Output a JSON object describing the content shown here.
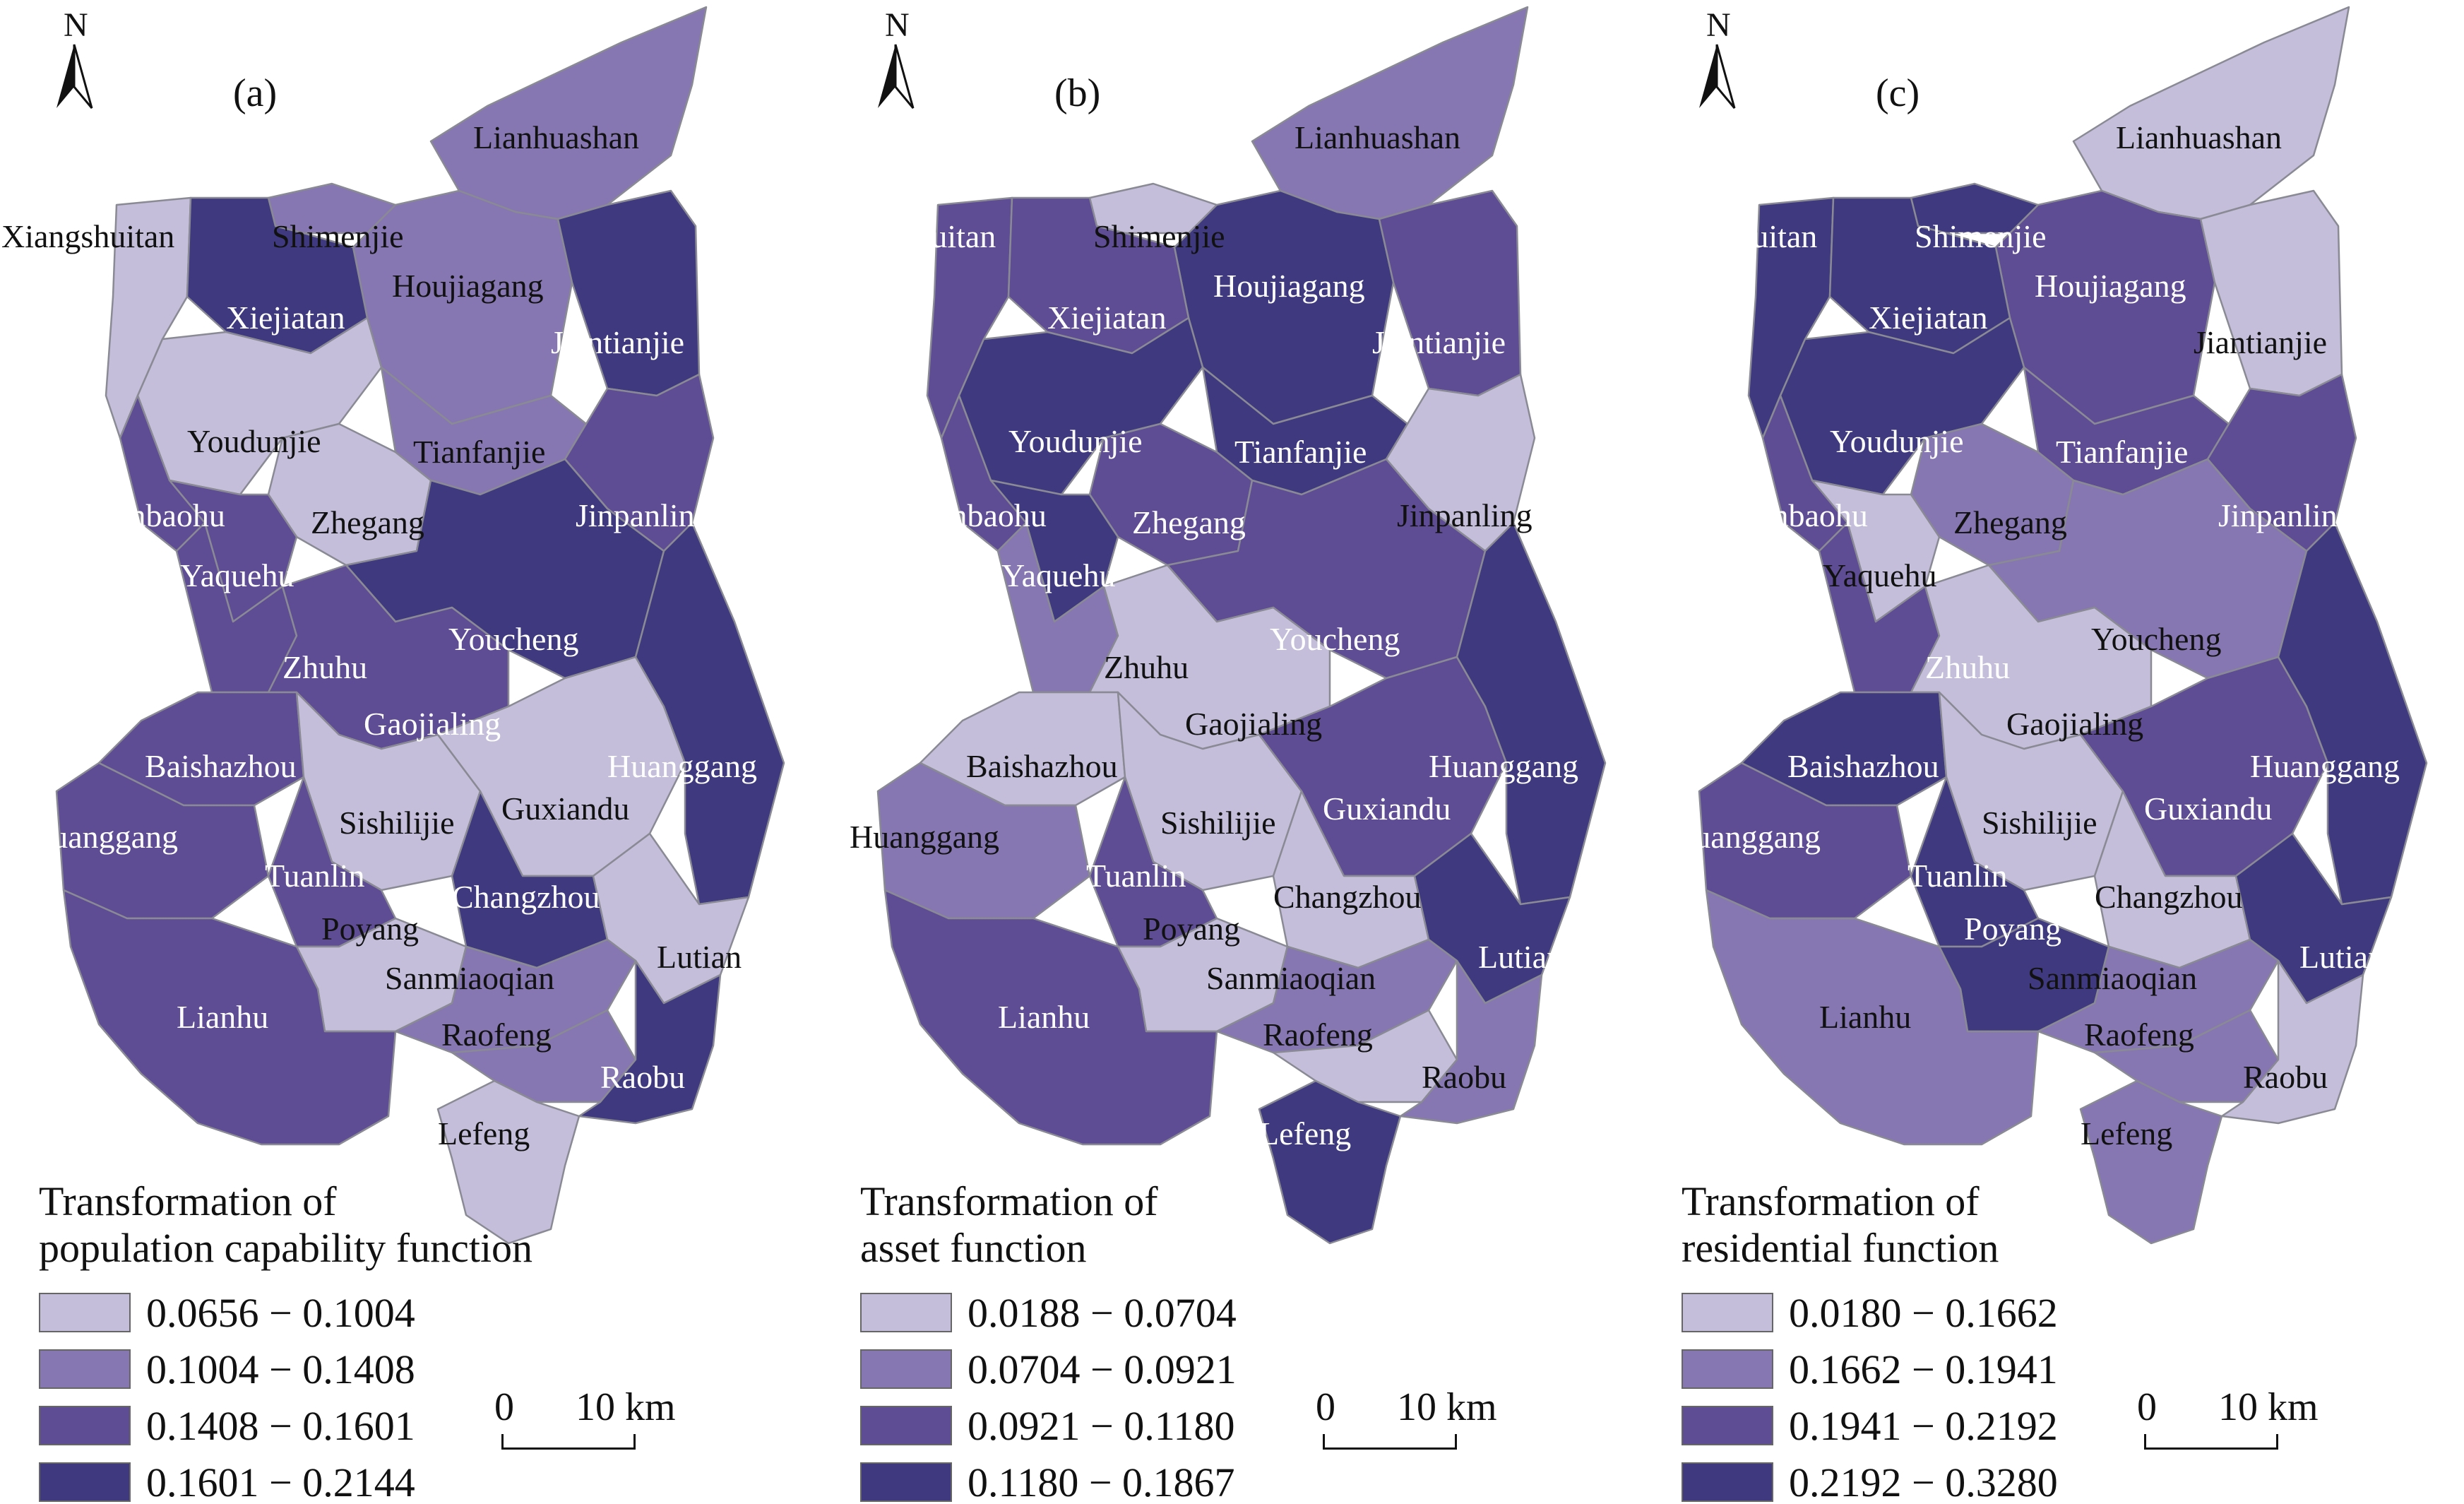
{
  "colors": [
    "#c4bedb",
    "#8677b2",
    "#5e4c94",
    "#3f3a80"
  ],
  "north_letter": "N",
  "scale_bar": {
    "start": "0",
    "end": "10 km"
  },
  "panels": [
    {
      "label": "(a)",
      "legend_title_1": "Transformation of",
      "legend_title_2": "population capability function",
      "ranges": [
        "0.0656 − 0.1004",
        "0.1004 − 0.1408",
        "0.1408 − 0.1601",
        "0.1601 − 0.2144"
      ],
      "towns": [
        "Lianhuashan",
        "Xiangshuitan",
        "Shimenjie",
        "Houjiagang",
        "Xiejiatan",
        "Jiantianjie",
        "Youdunjie",
        "Tianfanjie",
        "Yinbaohu",
        "Zhegang",
        "Jinpanling",
        "Yaquehu",
        "Youcheng",
        "Zhuhu",
        "Gaojialing",
        "Baishazhou",
        "Huanggang",
        "Sishilijie",
        "Guxiandu",
        "Huanggang",
        "Tuanlin",
        "Changzhou",
        "Poyang",
        "Lutian",
        "Sanmiaoqian",
        "Lianhu",
        "Raofeng",
        "Raobu",
        "Lefeng"
      ],
      "classes": [
        2,
        1,
        2,
        2,
        4,
        4,
        1,
        2,
        3,
        1,
        3,
        3,
        4,
        3,
        3,
        3,
        3,
        1,
        1,
        4,
        3,
        4,
        1,
        1,
        2,
        3,
        2,
        4,
        1
      ]
    },
    {
      "label": "(b)",
      "legend_title_1": "Transformation of",
      "legend_title_2": "asset function",
      "ranges": [
        "0.0188 − 0.0704",
        "0.0704 − 0.0921",
        "0.0921 − 0.1180",
        "0.1180 − 0.1867"
      ],
      "towns": [
        "Lianhuashan",
        "Xiangshuitan",
        "Shimenjie",
        "Houjiagang",
        "Xiejiatan",
        "Jiantianjie",
        "Youdunjie",
        "Tianfanjie",
        "Yinbaohu",
        "Zhegang",
        "Jinpanling",
        "Yaquehu",
        "Youcheng",
        "Zhuhu",
        "Gaojialing",
        "Baishazhou",
        "Huanggang",
        "Sishilijie",
        "Guxiandu",
        "Huanggang",
        "Tuanlin",
        "Changzhou",
        "Poyang",
        "Lutian",
        "Sanmiaoqian",
        "Lianhu",
        "Raofeng",
        "Raobu",
        "Lefeng"
      ],
      "classes": [
        2,
        3,
        1,
        4,
        3,
        3,
        4,
        4,
        3,
        3,
        1,
        4,
        3,
        2,
        1,
        1,
        2,
        1,
        3,
        4,
        3,
        1,
        1,
        4,
        2,
        3,
        1,
        2,
        4
      ]
    },
    {
      "label": "(c)",
      "legend_title_1": "Transformation of",
      "legend_title_2": "residential function",
      "ranges": [
        "0.0180 − 0.1662",
        "0.1662 − 0.1941",
        "0.1941 − 0.2192",
        "0.2192 − 0.3280"
      ],
      "towns": [
        "Lianhuashan",
        "Xiangshuitan",
        "Shimenjie",
        "Houjiagang",
        "Xiejiatan",
        "Jiantianjie",
        "Youdunjie",
        "Tianfanjie",
        "Yinbaohu",
        "Zhegang",
        "Jinpanling",
        "Yaquehu",
        "Youcheng",
        "Zhuhu",
        "Gaojialing",
        "Baishazhou",
        "Huanggang",
        "Sishilijie",
        "Guxiandu",
        "Huanggang",
        "Tuanlin",
        "Changzhou",
        "Poyang",
        "Lutian",
        "Sanmiaoqian",
        "Lianhu",
        "Raofeng",
        "Raobu",
        "Lefeng"
      ],
      "classes": [
        1,
        4,
        4,
        3,
        4,
        1,
        4,
        3,
        3,
        2,
        3,
        1,
        2,
        3,
        1,
        4,
        3,
        1,
        3,
        4,
        4,
        1,
        4,
        4,
        2,
        2,
        2,
        1,
        2
      ]
    }
  ]
}
